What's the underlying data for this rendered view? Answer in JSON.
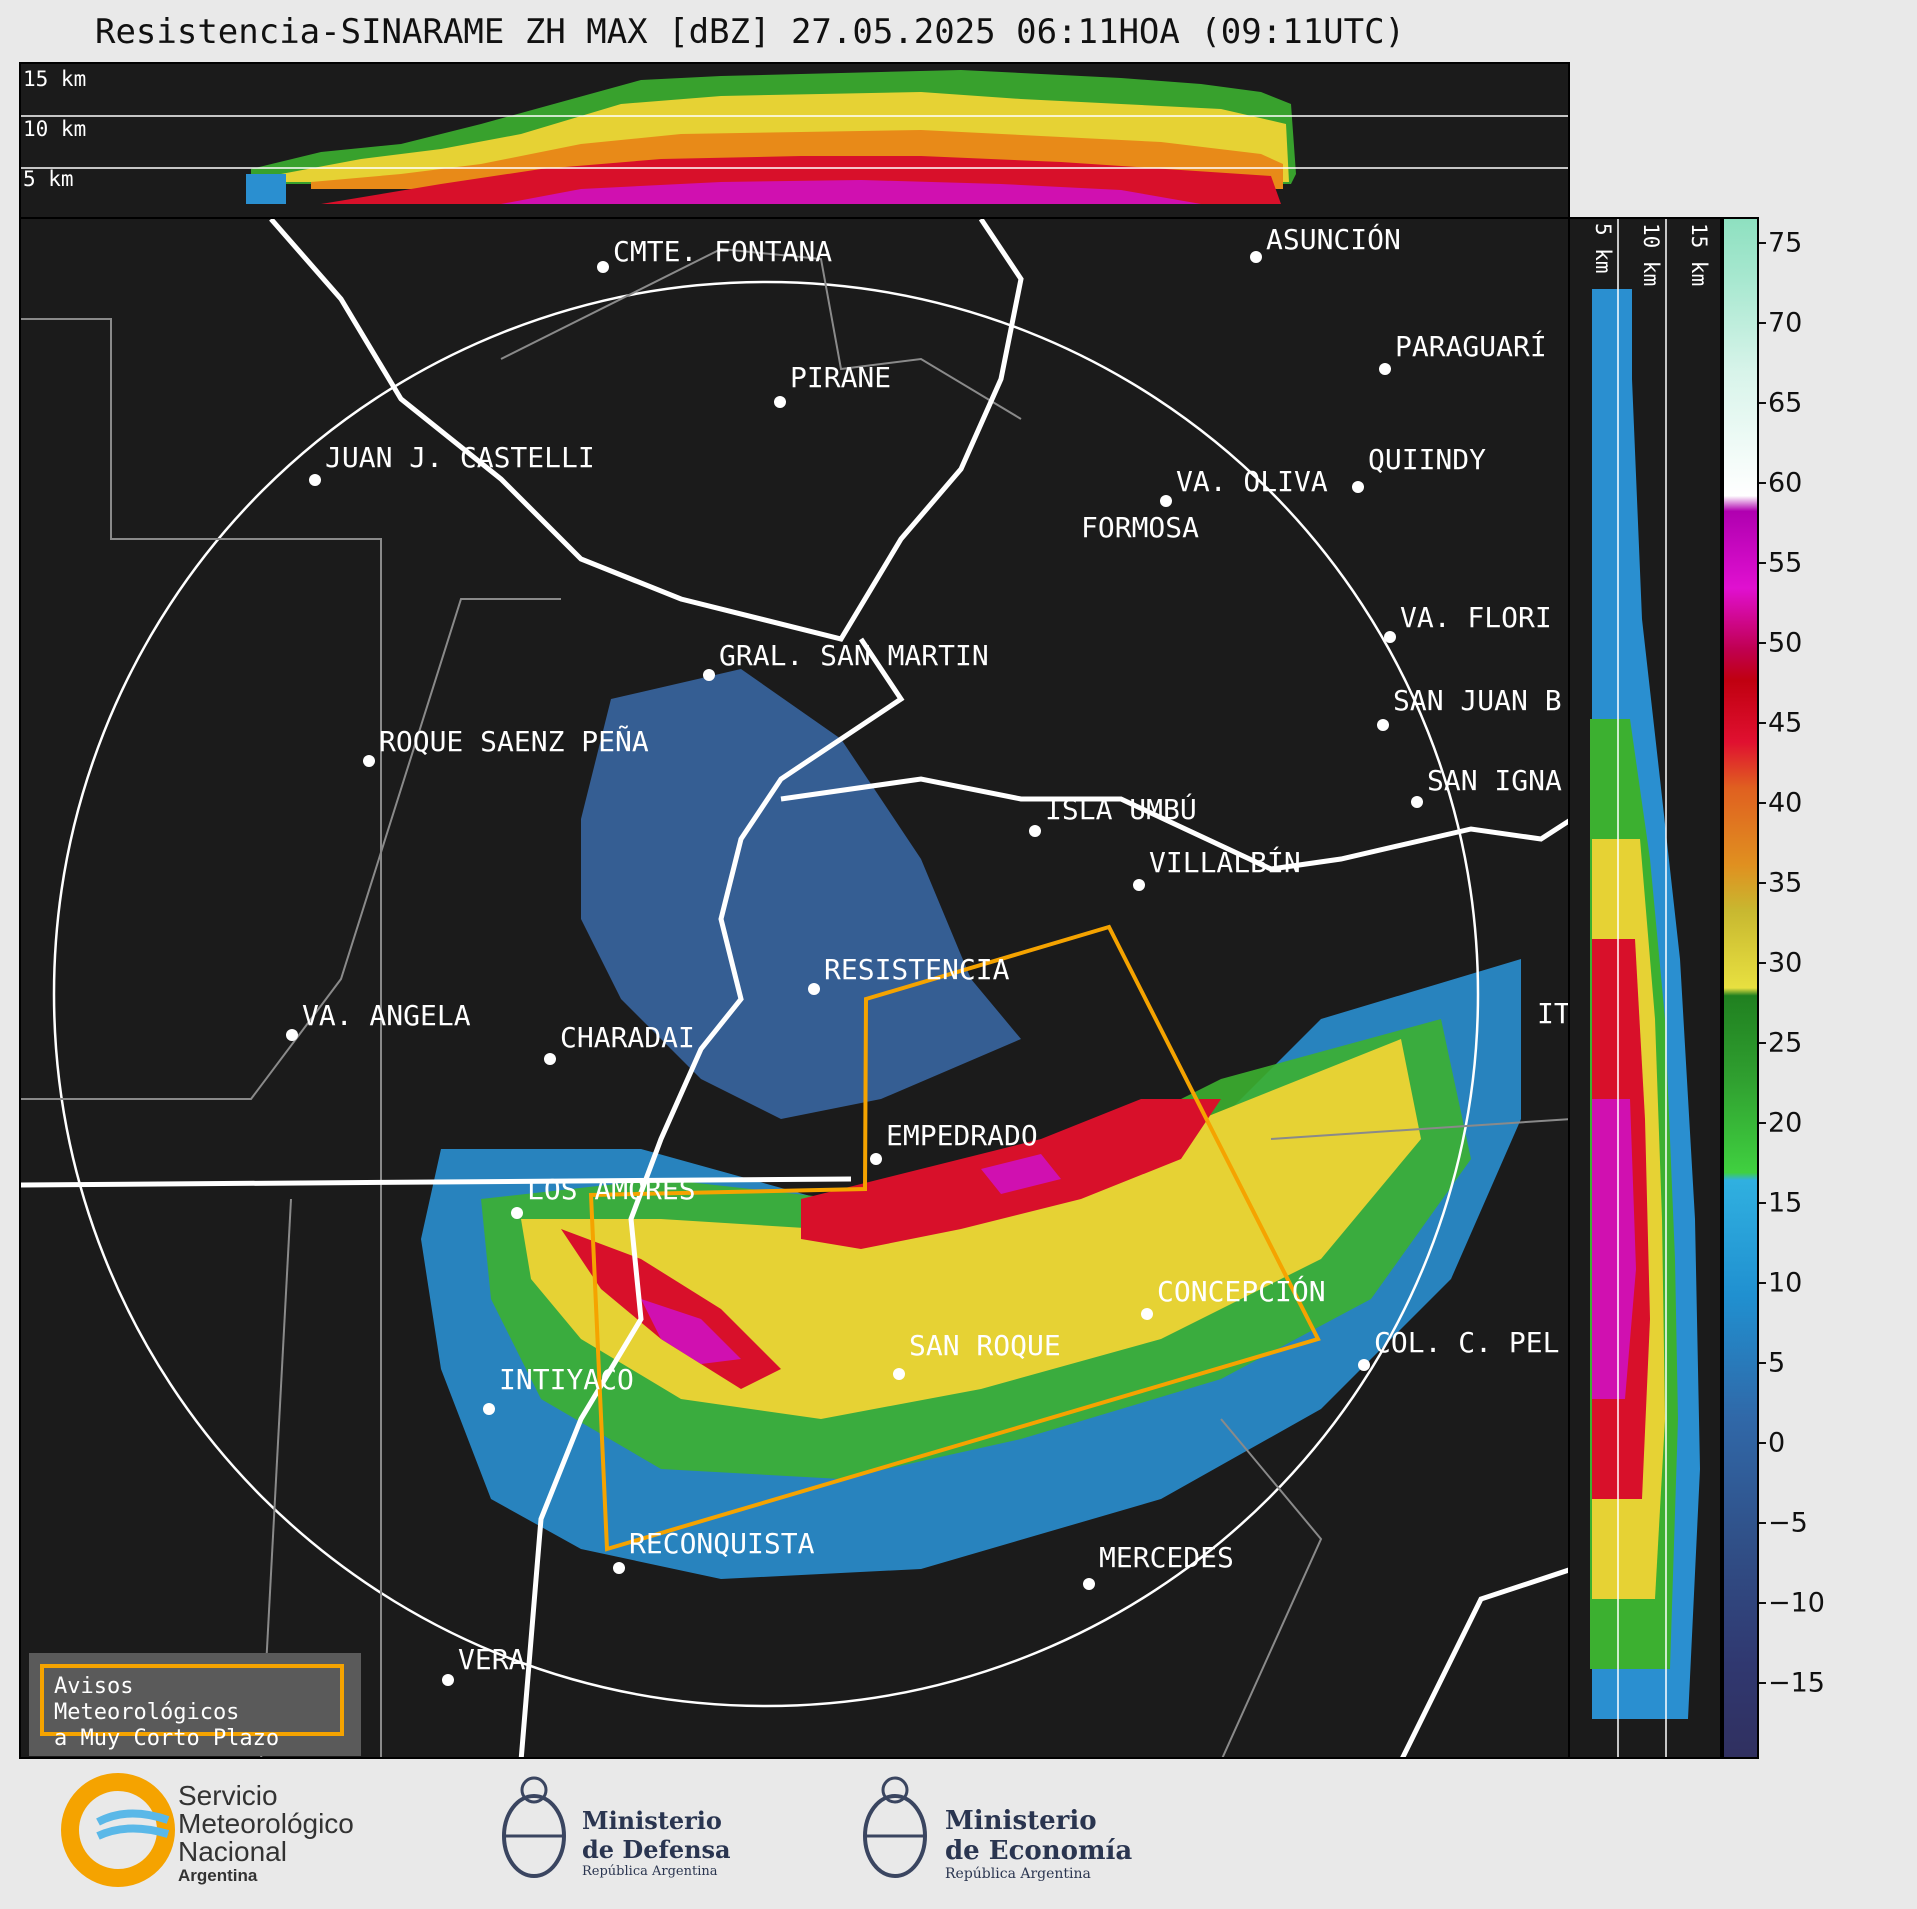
{
  "title": "Resistencia-SINARAME ZH MAX [dBZ] 27.05.2025 06:11HOA (09:11UTC)",
  "top_panel": {
    "height_labels": [
      "15 km",
      "10 km",
      "5 km"
    ]
  },
  "side_panel": {
    "height_labels": [
      "5 km",
      "10 km",
      "15 km"
    ]
  },
  "map": {
    "cities": [
      {
        "name": "CMTE. FONTANA"
      },
      {
        "name": "ASUNCIÓN"
      },
      {
        "name": "PIRANE"
      },
      {
        "name": "PARAGUARÍ"
      },
      {
        "name": "JUAN J. CASTELLI"
      },
      {
        "name": "VA. OLIVA"
      },
      {
        "name": "QUIINDY"
      },
      {
        "name": "FORMOSA"
      },
      {
        "name": "GRAL. SAN MARTIN"
      },
      {
        "name": "VA. FLORI"
      },
      {
        "name": "SAN JUAN B"
      },
      {
        "name": "ROQUE SAENZ PEÑA"
      },
      {
        "name": "SAN IGNA"
      },
      {
        "name": "ISLA UMBÚ"
      },
      {
        "name": "VILLALBÍN"
      },
      {
        "name": "RESISTENCIA"
      },
      {
        "name": "VA. ANGELA"
      },
      {
        "name": "CHARADAI"
      },
      {
        "name": "IT"
      },
      {
        "name": "EMPEDRADO"
      },
      {
        "name": "LOS AMORES"
      },
      {
        "name": "CONCEPCIÓN"
      },
      {
        "name": "SAN ROQUE"
      },
      {
        "name": "COL. C. PEL"
      },
      {
        "name": "INTIYACO"
      },
      {
        "name": "RECONQUISTA"
      },
      {
        "name": "MERCEDES"
      },
      {
        "name": "VERA"
      }
    ]
  },
  "colorbar": {
    "ticks": [
      "75",
      "70",
      "65",
      "60",
      "55",
      "50",
      "45",
      "40",
      "35",
      "30",
      "25",
      "20",
      "15",
      "10",
      "5",
      "0",
      "−5",
      "−10",
      "−15"
    ],
    "unit": "dBZ"
  },
  "aviso": {
    "line1": "Avisos Meteorológicos",
    "line2": "a Muy Corto Plazo"
  },
  "logos": {
    "smn": {
      "line1": "Servicio",
      "line2": "Meteorológico",
      "line3": "Nacional",
      "line4": "Argentina"
    },
    "defensa": {
      "line1": "Ministerio",
      "line2": "de Defensa",
      "line3": "República Argentina"
    },
    "economia": {
      "line1": "Ministerio",
      "line2": "de Economía",
      "line3": "República Argentina"
    }
  },
  "colors": {
    "warning_polygon": "#f5a300",
    "background": "#1b1b1b",
    "borders": "#8a8a8a"
  }
}
